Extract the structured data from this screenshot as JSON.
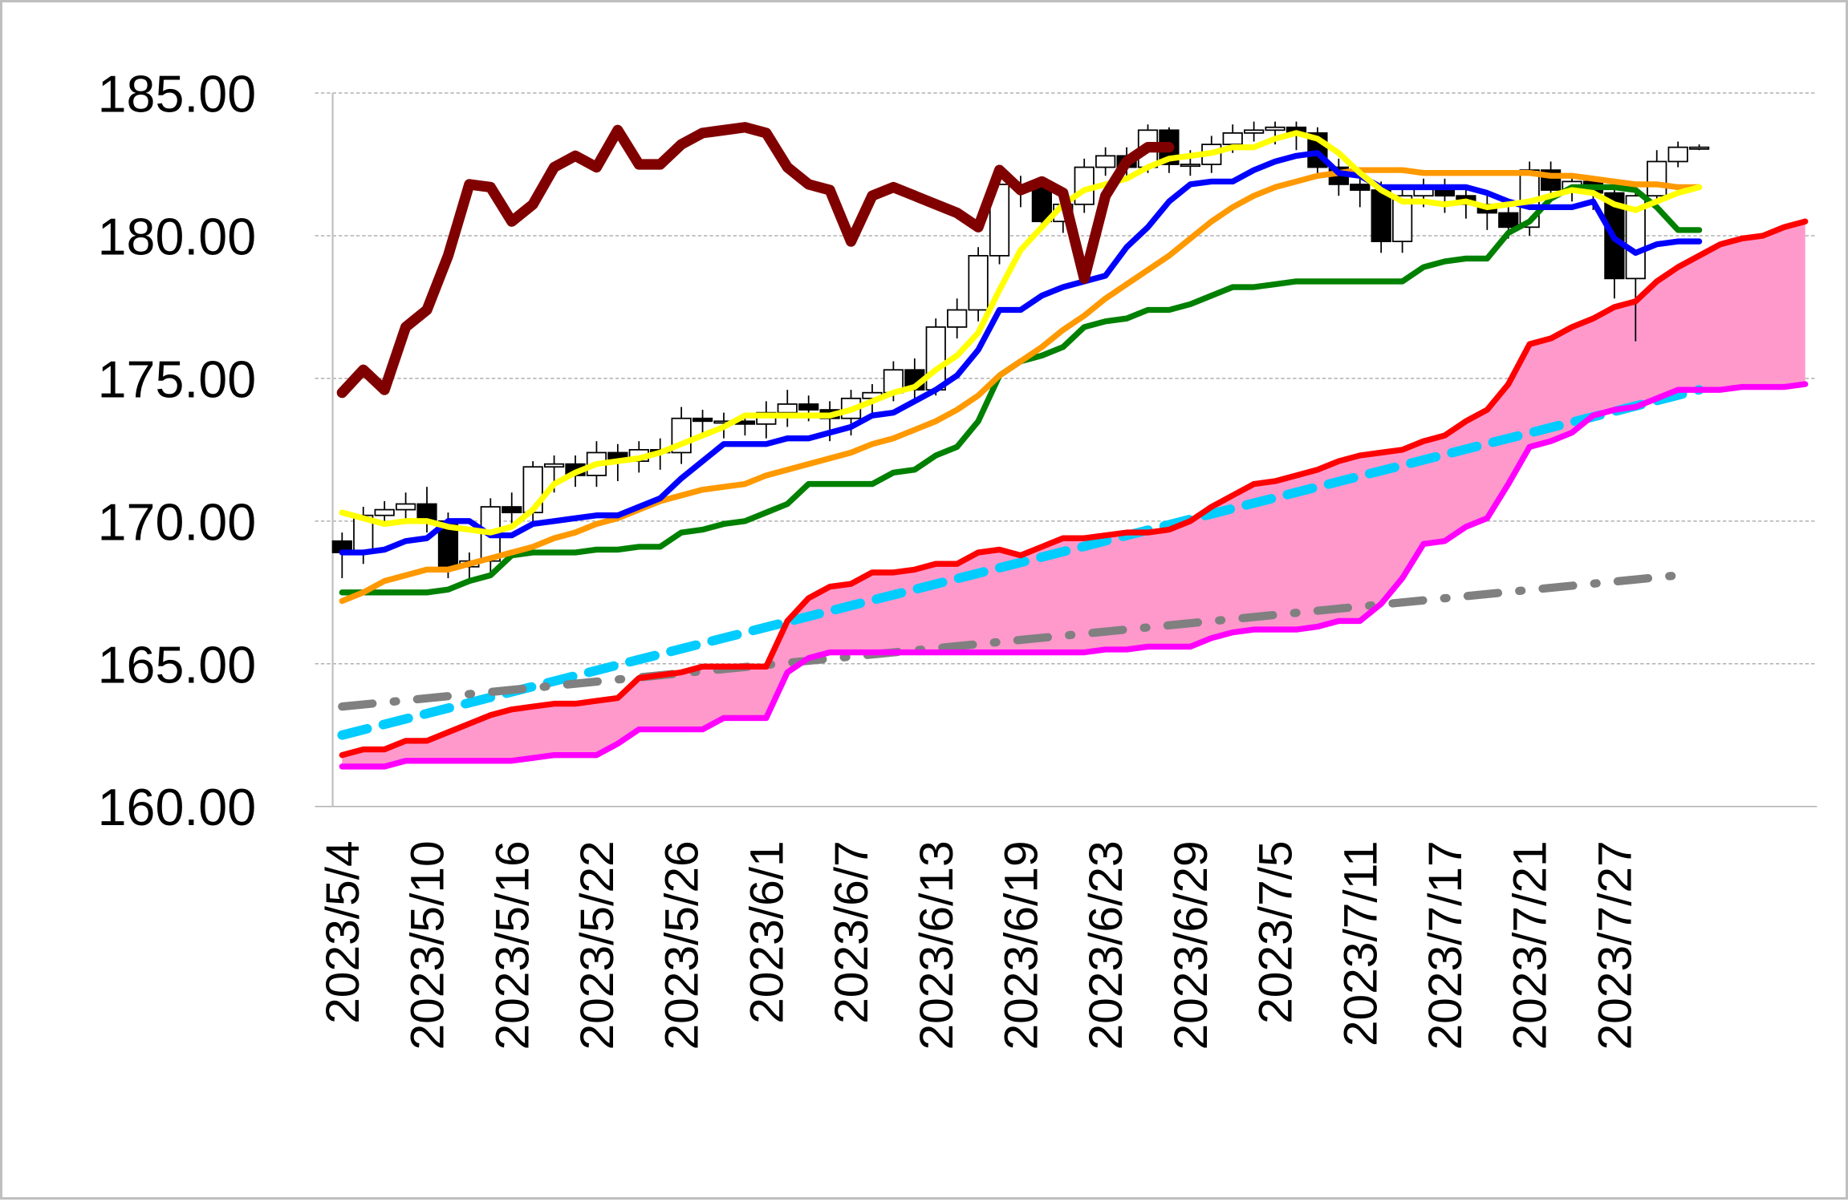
{
  "chart_data": {
    "type": "candlestick",
    "title": "",
    "xlabel": "",
    "ylabel": "",
    "ylim": [
      160,
      185
    ],
    "y_ticks": [
      "160.00",
      "165.00",
      "170.00",
      "175.00",
      "180.00",
      "185.00"
    ],
    "x_tick_labels": [
      "2023/5/4",
      "2023/5/10",
      "2023/5/16",
      "2023/5/22",
      "2023/5/26",
      "2023/6/1",
      "2023/6/7",
      "2023/6/13",
      "2023/6/19",
      "2023/6/23",
      "2023/6/29",
      "2023/7/5",
      "2023/7/11",
      "2023/7/17",
      "2023/7/21",
      "2023/7/27"
    ],
    "x_tick_every": 4,
    "grid": "horizontal dashed",
    "legend": "none",
    "candles": {
      "open": [
        169.3,
        168.9,
        170.2,
        170.4,
        170.6,
        170.0,
        168.4,
        168.6,
        170.5,
        170.3,
        171.9,
        172.0,
        171.6,
        172.4,
        172.1,
        172.5,
        172.4,
        173.6,
        173.5,
        173.5,
        173.4,
        173.8,
        174.1,
        173.9,
        173.6,
        174.3,
        174.5,
        175.3,
        174.6,
        176.8,
        177.4,
        179.3,
        181.8,
        181.7,
        180.5,
        181.1,
        182.4,
        182.8,
        182.4,
        183.7,
        182.5,
        182.5,
        183.2,
        183.6,
        183.7,
        183.8,
        183.6,
        182.4,
        181.8,
        181.6,
        179.8,
        181.4,
        181.7,
        181.4,
        181.1,
        180.8,
        180.3,
        182.3,
        181.6,
        181.9,
        181.5,
        178.5,
        181.4,
        182.6,
        183.1
      ],
      "high": [
        169.6,
        170.5,
        170.7,
        171.0,
        171.2,
        170.3,
        168.9,
        170.8,
        171.0,
        172.1,
        172.3,
        172.3,
        172.8,
        172.7,
        172.8,
        172.9,
        174.0,
        173.9,
        173.8,
        173.8,
        174.2,
        174.6,
        174.4,
        174.2,
        174.6,
        174.8,
        175.6,
        175.7,
        177.1,
        177.8,
        179.6,
        182.2,
        182.1,
        182.0,
        181.6,
        182.7,
        183.1,
        183.1,
        183.9,
        183.8,
        183.0,
        183.5,
        183.9,
        184.0,
        184.0,
        184.0,
        183.8,
        182.7,
        182.3,
        181.9,
        181.8,
        182.0,
        182.0,
        181.7,
        181.4,
        181.2,
        182.6,
        182.6,
        182.2,
        182.1,
        181.8,
        181.6,
        183.0,
        183.3,
        183.2
      ],
      "low": [
        168.0,
        168.5,
        169.8,
        170.0,
        169.6,
        168.0,
        168.0,
        168.2,
        169.9,
        169.9,
        171.0,
        171.2,
        171.2,
        171.4,
        171.7,
        171.8,
        172.0,
        173.0,
        172.9,
        173.0,
        172.9,
        173.3,
        173.5,
        172.8,
        173.0,
        173.8,
        174.2,
        174.2,
        174.4,
        176.4,
        177.0,
        179.0,
        181.0,
        180.2,
        180.1,
        180.8,
        182.1,
        182.0,
        182.2,
        182.2,
        182.1,
        182.2,
        182.9,
        183.3,
        183.2,
        183.0,
        182.0,
        181.4,
        181.0,
        179.4,
        179.4,
        181.0,
        180.8,
        180.6,
        180.2,
        179.9,
        180.0,
        181.2,
        181.2,
        180.9,
        177.8,
        176.3,
        181.2,
        182.4,
        183.0
      ],
      "close": [
        168.9,
        170.2,
        170.4,
        170.6,
        170.0,
        168.4,
        168.6,
        170.5,
        170.3,
        171.9,
        172.0,
        171.6,
        172.4,
        172.1,
        172.5,
        172.4,
        173.6,
        173.5,
        173.5,
        173.4,
        173.8,
        174.1,
        173.9,
        173.6,
        174.3,
        174.5,
        175.3,
        174.6,
        176.8,
        177.4,
        179.3,
        181.8,
        181.7,
        180.5,
        181.1,
        182.4,
        182.8,
        182.4,
        183.7,
        182.5,
        182.5,
        183.2,
        183.6,
        183.7,
        183.8,
        183.6,
        182.4,
        181.8,
        181.6,
        179.8,
        181.4,
        181.7,
        181.4,
        181.1,
        180.8,
        180.3,
        182.3,
        181.6,
        181.9,
        181.5,
        178.5,
        181.4,
        182.6,
        183.1,
        183.1
      ]
    },
    "series": [
      {
        "name": "yellow-line",
        "color": "#ffff00",
        "width": 5,
        "values": [
          170.3,
          170.1,
          169.9,
          170.0,
          170.0,
          169.8,
          169.7,
          169.6,
          169.8,
          170.4,
          171.3,
          171.7,
          172.0,
          172.1,
          172.2,
          172.4,
          172.7,
          173.0,
          173.3,
          173.7,
          173.7,
          173.7,
          173.7,
          173.7,
          173.9,
          174.2,
          174.5,
          174.7,
          175.3,
          175.8,
          176.6,
          178.1,
          179.5,
          180.3,
          181.1,
          181.6,
          181.8,
          182.0,
          182.4,
          182.7,
          182.8,
          182.9,
          183.1,
          183.1,
          183.4,
          183.6,
          183.4,
          182.9,
          182.2,
          181.6,
          181.2,
          181.2,
          181.1,
          181.2,
          181.0,
          181.1,
          181.2,
          181.4,
          181.6,
          181.5,
          181.1,
          180.9,
          181.2,
          181.5,
          181.7
        ]
      },
      {
        "name": "blue-line",
        "color": "#0000ff",
        "width": 5,
        "values": [
          168.9,
          168.9,
          169.0,
          169.3,
          169.4,
          170.0,
          170.0,
          169.5,
          169.5,
          169.9,
          170.0,
          170.1,
          170.2,
          170.2,
          170.5,
          170.8,
          171.5,
          172.1,
          172.7,
          172.7,
          172.7,
          172.9,
          172.9,
          173.1,
          173.3,
          173.7,
          173.8,
          174.2,
          174.6,
          175.1,
          176.0,
          177.4,
          177.4,
          177.9,
          178.2,
          178.4,
          178.6,
          179.6,
          180.3,
          181.2,
          181.8,
          181.9,
          181.9,
          182.3,
          182.6,
          182.8,
          182.9,
          182.2,
          182.1,
          181.7,
          181.7,
          181.7,
          181.7,
          181.7,
          181.5,
          181.2,
          181.0,
          181.0,
          181.0,
          181.2,
          179.9,
          179.4,
          179.7,
          179.8,
          179.8
        ]
      },
      {
        "name": "orange-line",
        "color": "#ff9900",
        "width": 5,
        "values": [
          167.2,
          167.5,
          167.9,
          168.1,
          168.3,
          168.3,
          168.5,
          168.7,
          168.9,
          169.1,
          169.4,
          169.6,
          169.9,
          170.1,
          170.4,
          170.7,
          170.9,
          171.1,
          171.2,
          171.3,
          171.6,
          171.8,
          172.0,
          172.2,
          172.4,
          172.7,
          172.9,
          173.2,
          173.5,
          173.9,
          174.4,
          175.1,
          175.6,
          176.1,
          176.7,
          177.2,
          177.8,
          178.3,
          178.8,
          179.3,
          179.9,
          180.5,
          181.0,
          181.4,
          181.7,
          181.9,
          182.1,
          182.2,
          182.3,
          182.3,
          182.3,
          182.2,
          182.2,
          182.2,
          182.2,
          182.2,
          182.2,
          182.1,
          182.1,
          182.0,
          181.9,
          181.8,
          181.8,
          181.7,
          181.7
        ]
      },
      {
        "name": "green-line",
        "color": "#008000",
        "width": 5,
        "values": [
          167.5,
          167.5,
          167.5,
          167.5,
          167.5,
          167.6,
          167.9,
          168.1,
          168.8,
          168.9,
          168.9,
          168.9,
          169.0,
          169.0,
          169.1,
          169.1,
          169.6,
          169.7,
          169.9,
          170.0,
          170.3,
          170.6,
          171.3,
          171.3,
          171.3,
          171.3,
          171.7,
          171.8,
          172.3,
          172.6,
          173.5,
          175.1,
          175.6,
          175.8,
          176.1,
          176.8,
          177.0,
          177.1,
          177.4,
          177.4,
          177.6,
          177.9,
          178.2,
          178.2,
          178.3,
          178.4,
          178.4,
          178.4,
          178.4,
          178.4,
          178.4,
          178.9,
          179.1,
          179.2,
          179.2,
          180.1,
          180.5,
          181.3,
          181.7,
          181.7,
          181.7,
          181.6,
          181.0,
          180.2,
          180.2
        ]
      },
      {
        "name": "lagging-span",
        "color": "#800000",
        "width": 9,
        "values": [
          174.5,
          175.3,
          174.6,
          176.8,
          177.4,
          179.3,
          181.8,
          181.7,
          180.5,
          181.1,
          182.4,
          182.8,
          182.4,
          183.7,
          182.5,
          182.5,
          183.2,
          183.6,
          183.7,
          183.8,
          183.6,
          182.4,
          181.8,
          181.6,
          179.8,
          181.4,
          181.7,
          181.4,
          181.1,
          180.8,
          180.3,
          182.3,
          181.6,
          181.9,
          181.5,
          178.5,
          181.4,
          182.6,
          183.1,
          183.1
        ]
      },
      {
        "name": "leading-span-a",
        "color": "#ff0000",
        "width": 5,
        "values": [
          161.8,
          162.0,
          162.0,
          162.3,
          162.3,
          162.6,
          162.9,
          163.2,
          163.4,
          163.5,
          163.6,
          163.6,
          163.7,
          163.8,
          164.5,
          164.6,
          164.7,
          164.9,
          164.9,
          164.9,
          164.9,
          166.5,
          167.3,
          167.7,
          167.8,
          168.2,
          168.2,
          168.3,
          168.5,
          168.5,
          168.9,
          169.0,
          168.8,
          169.1,
          169.4,
          169.4,
          169.5,
          169.6,
          169.6,
          169.7,
          170.0,
          170.5,
          170.9,
          171.3,
          171.4,
          171.6,
          171.8,
          172.1,
          172.3,
          172.4,
          172.5,
          172.8,
          173.0,
          173.5,
          173.9,
          174.8,
          176.2,
          176.4,
          176.8,
          177.1,
          177.5,
          177.7,
          178.4,
          178.9,
          179.3,
          179.7,
          179.9,
          180.0,
          180.3,
          180.5
        ]
      },
      {
        "name": "leading-span-b",
        "color": "#ff00ff",
        "width": 5,
        "values": [
          161.4,
          161.4,
          161.4,
          161.6,
          161.6,
          161.6,
          161.6,
          161.6,
          161.6,
          161.7,
          161.8,
          161.8,
          161.8,
          162.2,
          162.7,
          162.7,
          162.7,
          162.7,
          163.1,
          163.1,
          163.1,
          164.7,
          165.2,
          165.4,
          165.4,
          165.4,
          165.4,
          165.4,
          165.4,
          165.4,
          165.4,
          165.4,
          165.4,
          165.4,
          165.4,
          165.4,
          165.5,
          165.5,
          165.6,
          165.6,
          165.6,
          165.9,
          166.1,
          166.2,
          166.2,
          166.2,
          166.3,
          166.5,
          166.5,
          167.1,
          168.0,
          169.2,
          169.3,
          169.8,
          170.1,
          171.3,
          172.6,
          172.8,
          173.1,
          173.7,
          173.9,
          174.0,
          174.3,
          174.6,
          174.6,
          174.6,
          174.7,
          174.7,
          174.7,
          174.8
        ]
      }
    ],
    "cloud_color": "#ff99cc",
    "trend_lines": [
      {
        "name": "cyan-dashed-trend",
        "color": "#00ccff",
        "style": "dashed",
        "from": [
          0,
          162.5
        ],
        "to": [
          64,
          174.6
        ]
      },
      {
        "name": "gray-dashdot-trend",
        "color": "#808080",
        "style": "dash-dot",
        "from": [
          0,
          163.5
        ],
        "to": [
          63,
          168.1
        ]
      }
    ]
  }
}
